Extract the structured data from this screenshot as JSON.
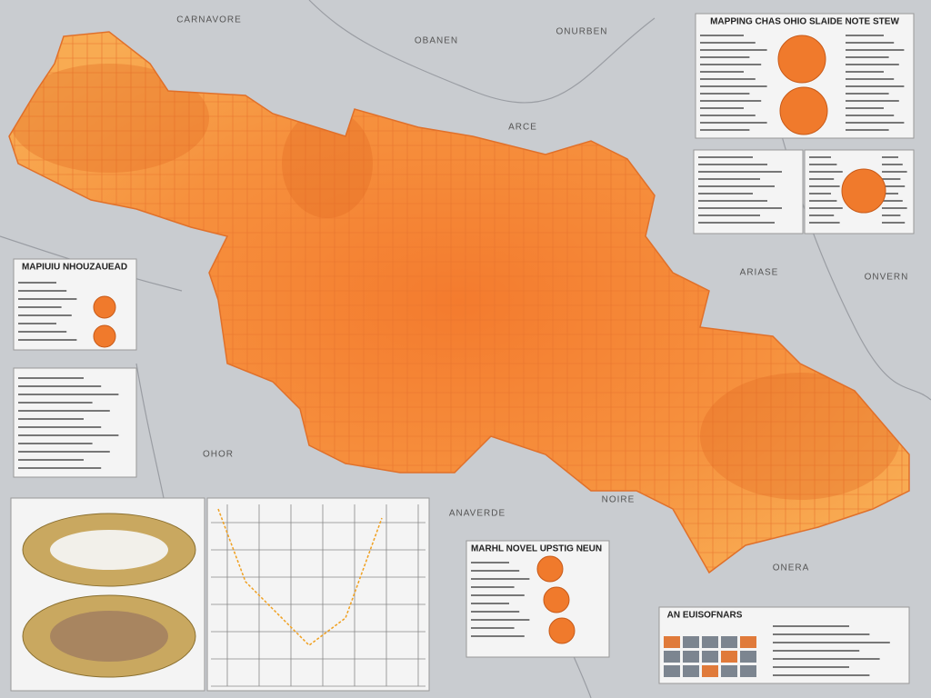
{
  "map": {
    "place_labels": [
      "CARNAVORE",
      "OBANEN",
      "ONURBEN",
      "ARCE",
      "ARIASE",
      "ONVERN",
      "OHOR",
      "NOIRE",
      "ANAVERDE",
      "ONERA"
    ],
    "panels": [
      {
        "title": "MAPPING CHAS OHIO SLAIDE NOTE STEW"
      },
      {
        "title": "MAPIUIU NHOUZAUEAD"
      },
      {
        "title": "MARHL NOVEL UPSTIG NEUN"
      },
      {
        "title": "AN EUISOFNARS"
      }
    ]
  }
}
